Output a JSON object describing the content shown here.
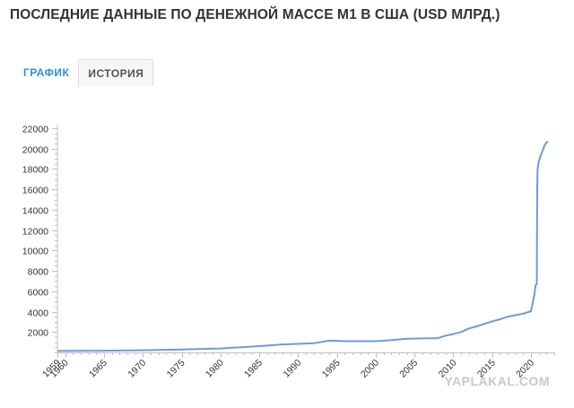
{
  "title": "ПОСЛЕДНИЕ ДАННЫЕ ПО ДЕНЕЖНОЙ МАССЕ M1 В США (USD МЛРД.)",
  "tabs": [
    {
      "label": "ГРАФИК",
      "active": true
    },
    {
      "label": "ИСТОРИЯ",
      "active": false
    }
  ],
  "watermark": "YAPLAKAL.COM",
  "colors": {
    "line": "#6f9ad8",
    "axis": "#c0c0c0",
    "tab_active": "#2f8dd8"
  },
  "chart_data": {
    "type": "line",
    "title": "",
    "xlabel": "",
    "ylabel": "",
    "xlim": [
      1959,
      2023
    ],
    "ylim": [
      0,
      22000
    ],
    "yticks": [
      2000,
      4000,
      6000,
      8000,
      10000,
      12000,
      14000,
      16000,
      18000,
      20000,
      22000
    ],
    "xtick_labels": [
      {
        "value": 1959,
        "label": "1959"
      },
      {
        "value": 1960,
        "label": "1960"
      },
      {
        "value": 1965,
        "label": "1965"
      },
      {
        "value": 1970,
        "label": "1970"
      },
      {
        "value": 1975,
        "label": "1975"
      },
      {
        "value": 1980,
        "label": "1980"
      },
      {
        "value": 1985,
        "label": "1985"
      },
      {
        "value": 1990,
        "label": "1990"
      },
      {
        "value": 1995,
        "label": "1995"
      },
      {
        "value": 2000,
        "label": "2000"
      },
      {
        "value": 2005,
        "label": "2005"
      },
      {
        "value": 2010,
        "label": "2010"
      },
      {
        "value": 2015,
        "label": "2015"
      },
      {
        "value": 2020,
        "label": "2020"
      }
    ],
    "grid": false,
    "series": [
      {
        "x": [
          1959,
          1965,
          1970,
          1975,
          1980,
          1985,
          1988,
          1992,
          1994,
          1996,
          1998,
          2000,
          2002,
          2004,
          2006,
          2008,
          2009,
          2010,
          2011,
          2012,
          2013,
          2014,
          2015,
          2016,
          2017,
          2018,
          2019,
          2020.0,
          2020.2,
          2020.35,
          2020.45,
          2020.6,
          2020.75,
          2020.8,
          2020.85,
          2021.0,
          2021.2,
          2021.5,
          2021.8,
          2022.0,
          2022.2
        ],
        "y": [
          140,
          170,
          210,
          290,
          390,
          620,
          780,
          900,
          1150,
          1100,
          1100,
          1100,
          1200,
          1350,
          1370,
          1400,
          1650,
          1800,
          2000,
          2350,
          2550,
          2800,
          3050,
          3250,
          3500,
          3650,
          3800,
          4050,
          4800,
          5350,
          5700,
          6600,
          6700,
          16000,
          18000,
          18700,
          19200,
          19800,
          20400,
          20600,
          20700
        ]
      }
    ]
  }
}
